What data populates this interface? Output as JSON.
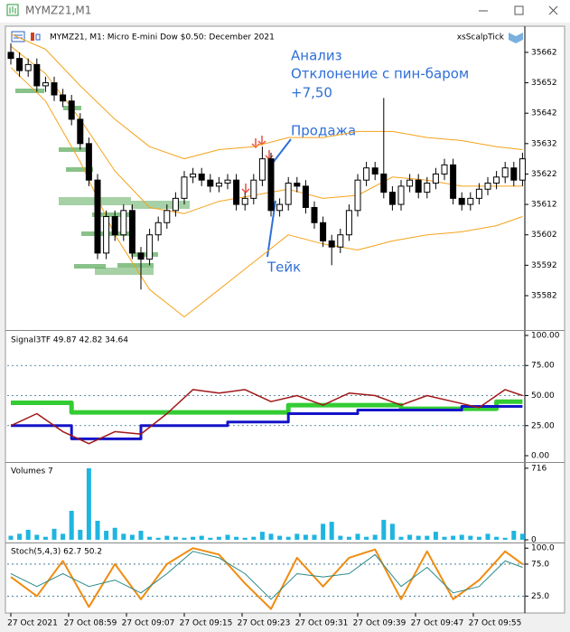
{
  "window": {
    "title": "MYMZ21,M1"
  },
  "chart_data": [
    {
      "type": "candlestick",
      "title": "MYMZ21, M1:  Micro E-mini Dow $0.50: December 2021",
      "indicator": "xsScalpTick",
      "annotations": [
        "Анализ",
        "Отклонение с пин-баром",
        "+7,50",
        "Продажа",
        "Тейк"
      ],
      "open": [
        35662,
        35660,
        35656,
        35658,
        35651,
        35652,
        35648,
        35646,
        35640,
        35632,
        35620,
        35596,
        35608,
        35602,
        35610,
        35596,
        35594,
        35602,
        35606,
        35610,
        35614,
        35621,
        35622,
        35620,
        35618,
        35619,
        35620,
        35612,
        35614,
        35620,
        35627,
        35610,
        35612,
        35619,
        35618,
        35611,
        35606,
        35600,
        35598,
        35602,
        35610,
        35620,
        35624,
        35622,
        35616,
        35612,
        35618,
        35620,
        35616,
        35619,
        35622,
        35625,
        35614,
        35612,
        35614,
        35617,
        35619,
        35621,
        35624,
        35620
      ],
      "high": [
        35665,
        35662,
        35660,
        35660,
        35654,
        35654,
        35650,
        35648,
        35642,
        35634,
        35622,
        35610,
        35610,
        35612,
        35612,
        35598,
        35604,
        35608,
        35612,
        35616,
        35623,
        35624,
        35624,
        35622,
        35621,
        35622,
        35622,
        35616,
        35622,
        35631,
        35629,
        35614,
        35621,
        35621,
        35620,
        35613,
        35608,
        35602,
        35604,
        35612,
        35622,
        35626,
        35626,
        35647,
        35618,
        35620,
        35622,
        35622,
        35621,
        35624,
        35627,
        35627,
        35616,
        35616,
        35619,
        35621,
        35623,
        35626,
        35626,
        35629
      ],
      "low": [
        35658,
        35654,
        35654,
        35649,
        35649,
        35646,
        35644,
        35638,
        35630,
        35618,
        35594,
        35594,
        35600,
        35600,
        35594,
        35584,
        35592,
        35600,
        35604,
        35608,
        35612,
        35619,
        35618,
        35616,
        35616,
        35617,
        35610,
        35610,
        35612,
        35618,
        35608,
        35608,
        35610,
        35616,
        35609,
        35604,
        35598,
        35592,
        35596,
        35600,
        35608,
        35618,
        35620,
        35614,
        35610,
        35610,
        35616,
        35614,
        35614,
        35617,
        35620,
        35612,
        35610,
        35610,
        35612,
        35615,
        35617,
        35619,
        35618,
        35618
      ],
      "close": [
        35660,
        35656,
        35658,
        35651,
        35652,
        35648,
        35646,
        35640,
        35632,
        35620,
        35596,
        35608,
        35602,
        35610,
        35596,
        35594,
        35602,
        35606,
        35610,
        35614,
        35621,
        35622,
        35620,
        35618,
        35619,
        35620,
        35612,
        35614,
        35620,
        35627,
        35610,
        35612,
        35619,
        35618,
        35611,
        35606,
        35600,
        35598,
        35602,
        35610,
        35620,
        35624,
        35622,
        35616,
        35612,
        35618,
        35620,
        35616,
        35619,
        35622,
        35625,
        35614,
        35612,
        35614,
        35617,
        35619,
        35621,
        35624,
        35620,
        35627
      ],
      "up_color": "#ffffff",
      "down_color": "#000000",
      "series": [
        {
          "color": "#f5a31a",
          "x": [
            0,
            4,
            8,
            12,
            16,
            20,
            24,
            28,
            32,
            36,
            40,
            44,
            48,
            52,
            56,
            59
          ],
          "values": [
            35668,
            35663,
            35651,
            35640,
            35631,
            35627,
            35630,
            35631,
            35634,
            35634,
            35636,
            35636,
            35634,
            35633,
            35631,
            35630
          ]
        },
        {
          "color": "#f5a31a",
          "x": [
            0,
            4,
            8,
            12,
            16,
            20,
            24,
            28,
            32,
            36,
            40,
            44,
            48,
            52,
            56,
            59
          ],
          "values": [
            35664,
            35655,
            35640,
            35623,
            35611,
            35609,
            35613,
            35615,
            35617,
            35614,
            35615,
            35621,
            35620,
            35618,
            35618,
            35618
          ]
        },
        {
          "color": "#f5a31a",
          "x": [
            0,
            4,
            8,
            12,
            16,
            20,
            24,
            28,
            32,
            36,
            40,
            44,
            48,
            52,
            56,
            59
          ],
          "values": [
            35657,
            35646,
            35626,
            35602,
            35584,
            35575,
            35584,
            35593,
            35602,
            35599,
            35597,
            35600,
            35602,
            35603,
            35605,
            35608
          ]
        }
      ],
      "ylim": [
        35571,
        35670
      ],
      "yticks": [
        35662,
        35652,
        35642,
        35632,
        35622,
        35612,
        35602,
        35592,
        35582
      ],
      "grid": false
    },
    {
      "type": "line",
      "title": "Signal3TF 49.87 42.82 34.64",
      "series": [
        {
          "color": "#33cc33",
          "x": [
            0,
            7,
            7,
            32,
            32,
            45,
            45,
            56,
            56,
            59
          ],
          "values": [
            44,
            44,
            36,
            36,
            42,
            42,
            39,
            39,
            45,
            45
          ]
        },
        {
          "color": "#1414c8",
          "x": [
            0,
            7,
            7,
            15,
            15,
            25,
            25,
            32,
            32,
            40,
            40,
            52,
            52,
            59
          ],
          "values": [
            25,
            25,
            14,
            14,
            25,
            25,
            28,
            28,
            35,
            35,
            38,
            38,
            41,
            41
          ]
        },
        {
          "color": "#a01818",
          "x": [
            0,
            3,
            6,
            9,
            12,
            15,
            18,
            21,
            24,
            27,
            30,
            33,
            36,
            39,
            42,
            45,
            48,
            51,
            54,
            57,
            59
          ],
          "values": [
            25,
            35,
            20,
            10,
            20,
            18,
            35,
            55,
            52,
            55,
            45,
            50,
            42,
            52,
            50,
            42,
            50,
            45,
            40,
            55,
            50
          ]
        }
      ],
      "ylim": [
        -4.5,
        103
      ],
      "yticks": [
        {
          "value": 100,
          "label": "100.00"
        },
        {
          "value": 75,
          "label": "75.00"
        },
        {
          "value": 50,
          "label": "50.00"
        },
        {
          "value": 25,
          "label": "25.00"
        },
        {
          "value": 0,
          "label": "0.00"
        }
      ],
      "grid": true
    },
    {
      "type": "bar",
      "title": "Volumes 7",
      "values": [
        40,
        60,
        100,
        50,
        30,
        110,
        60,
        290,
        100,
        716,
        190,
        90,
        120,
        60,
        50,
        90,
        30,
        20,
        40,
        30,
        20,
        30,
        40,
        20,
        30,
        50,
        30,
        20,
        30,
        80,
        60,
        40,
        30,
        60,
        50,
        50,
        160,
        180,
        40,
        30,
        60,
        30,
        50,
        200,
        160,
        30,
        50,
        40,
        40,
        80,
        30,
        40,
        50,
        40,
        30,
        60,
        30,
        20,
        90,
        60
      ],
      "color": "#1fb5e0",
      "ylim": [
        0,
        760
      ],
      "yticks": [
        716,
        0
      ],
      "grid": false
    },
    {
      "type": "line",
      "title": "Stoch(5,4,3) 62.7 50.2",
      "series": [
        {
          "color": "#f08c10",
          "x": [
            0,
            3,
            6,
            9,
            12,
            15,
            18,
            21,
            24,
            27,
            30,
            33,
            36,
            39,
            42,
            45,
            48,
            51,
            54,
            57,
            59
          ],
          "values": [
            55,
            25,
            80,
            8,
            75,
            20,
            75,
            100,
            90,
            45,
            5,
            85,
            40,
            85,
            98,
            20,
            95,
            20,
            50,
            95,
            75
          ]
        },
        {
          "color": "#2a8a8a",
          "x": [
            0,
            3,
            6,
            9,
            12,
            15,
            18,
            21,
            24,
            27,
            30,
            33,
            36,
            39,
            42,
            45,
            48,
            51,
            54,
            57,
            59
          ],
          "values": [
            60,
            40,
            60,
            40,
            50,
            30,
            60,
            95,
            85,
            60,
            20,
            60,
            55,
            60,
            90,
            40,
            70,
            30,
            40,
            80,
            70
          ]
        }
      ],
      "ylim": [
        0,
        106
      ],
      "yticks": [
        {
          "value": 100,
          "label": "100.0"
        },
        {
          "value": 75,
          "label": "75.0"
        },
        {
          "value": 25,
          "label": "25.0"
        }
      ],
      "grid": true
    }
  ],
  "time_labels": [
    "27 Oct 2021",
    "27 Oct 08:59",
    "27 Oct 09:07",
    "27 Oct 09:15",
    "27 Oct 09:23",
    "27 Oct 09:31",
    "27 Oct 09:39",
    "27 Oct 09:47",
    "27 Oct 09:55"
  ]
}
